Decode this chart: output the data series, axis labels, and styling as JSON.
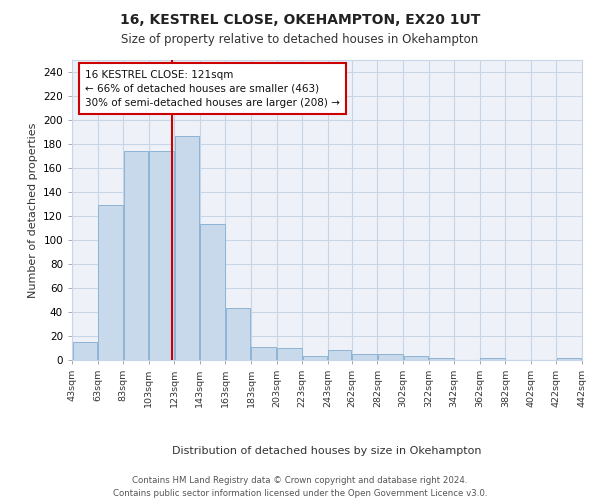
{
  "title1": "16, KESTREL CLOSE, OKEHAMPTON, EX20 1UT",
  "title2": "Size of property relative to detached houses in Okehampton",
  "xlabel": "Distribution of detached houses by size in Okehampton",
  "ylabel": "Number of detached properties",
  "bar_edges": [
    43,
    63,
    83,
    103,
    123,
    143,
    163,
    183,
    203,
    223,
    243,
    262,
    282,
    302,
    322,
    342,
    362,
    382,
    402,
    422,
    442
  ],
  "bar_heights": [
    15,
    129,
    174,
    174,
    187,
    113,
    43,
    11,
    10,
    3,
    8,
    5,
    5,
    3,
    2,
    0,
    2,
    0,
    0,
    2
  ],
  "bar_color": "#c9d9ec",
  "bar_edgecolor": "#8eb4d4",
  "property_size": 121,
  "vline_color": "#cc0000",
  "annotation_line1": "16 KESTREL CLOSE: 121sqm",
  "annotation_line2": "← 66% of detached houses are smaller (463)",
  "annotation_line3": "30% of semi-detached houses are larger (208) →",
  "annotation_boxcolor": "white",
  "annotation_boxedgecolor": "#cc0000",
  "ylim": [
    0,
    250
  ],
  "yticks": [
    0,
    20,
    40,
    60,
    80,
    100,
    120,
    140,
    160,
    180,
    200,
    220,
    240
  ],
  "grid_color": "#c8d4e8",
  "bg_color": "#eef2f8",
  "footer": "Contains HM Land Registry data © Crown copyright and database right 2024.\nContains public sector information licensed under the Open Government Licence v3.0."
}
